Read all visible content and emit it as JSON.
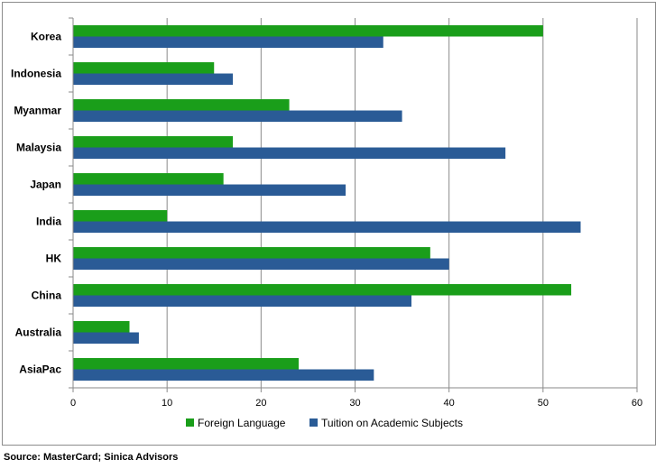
{
  "chart_data": {
    "type": "bar",
    "orientation": "horizontal",
    "categories": [
      "Korea",
      "Indonesia",
      "Myanmar",
      "Malaysia",
      "Japan",
      "India",
      "HK",
      "China",
      "Australia",
      "AsiaPac"
    ],
    "series": [
      {
        "name": "Foreign Language",
        "color": "#1a9e1a",
        "values": [
          50,
          15,
          23,
          17,
          16,
          10,
          38,
          53,
          6,
          24
        ]
      },
      {
        "name": "Tuition on Academic Subjects",
        "color": "#2a5b96",
        "values": [
          33,
          17,
          35,
          46,
          29,
          54,
          40,
          36,
          7,
          32
        ]
      }
    ],
    "xlim": [
      0,
      60
    ],
    "xticks": [
      0,
      10,
      20,
      30,
      40,
      50,
      60
    ],
    "grid": "vertical",
    "legend_position": "bottom"
  },
  "source_note": "Source: MasterCard; Sinica Advisors"
}
